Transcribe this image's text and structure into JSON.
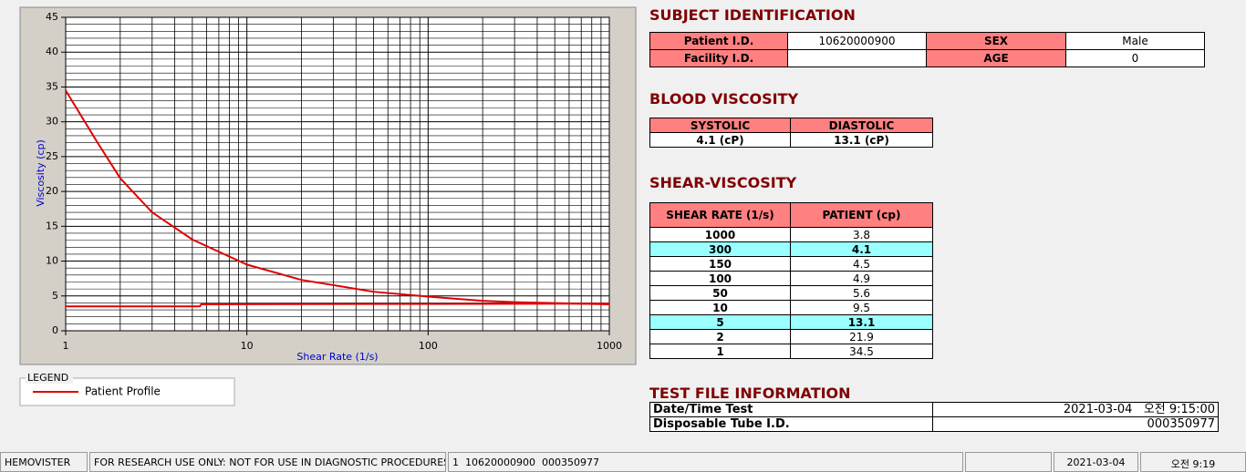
{
  "chart": {
    "type": "line",
    "x_label": "Shear Rate (1/s)",
    "y_label": "Viscosity (cp)",
    "log_x": true,
    "xlim": [
      1,
      1000
    ],
    "xticks": [
      1,
      10,
      100,
      1000
    ],
    "xminorticks": [
      2,
      3,
      4,
      5,
      6,
      7,
      8,
      9,
      20,
      30,
      40,
      50,
      60,
      70,
      80,
      90,
      200,
      300,
      400,
      500,
      600,
      700,
      800,
      900
    ],
    "ylim": [
      0,
      45
    ],
    "yticks": [
      0,
      5,
      10,
      15,
      20,
      25,
      30,
      35,
      40,
      45
    ],
    "yminorticks": [
      1,
      2,
      3,
      4,
      6,
      7,
      8,
      9,
      11,
      12,
      13,
      14,
      16,
      17,
      18,
      19,
      21,
      22,
      23,
      24,
      26,
      27,
      28,
      29,
      31,
      32,
      33,
      34,
      36,
      37,
      38,
      39,
      41,
      42,
      43,
      44
    ],
    "grid": true,
    "series": [
      {
        "name": "Patient Profile",
        "color": "#e00000",
        "x": [
          1,
          1.5,
          2,
          3,
          5,
          10,
          20,
          50,
          100,
          200,
          300,
          1000
        ],
        "values": [
          34.5,
          27,
          21.9,
          17,
          13.1,
          9.5,
          7.3,
          5.6,
          4.9,
          4.3,
          4.1,
          3.8
        ]
      },
      {
        "color": "#e00000",
        "x": [
          1,
          5.5,
          5.6,
          1000
        ],
        "values": [
          3.5,
          3.5,
          3.8,
          3.9
        ]
      }
    ]
  },
  "legend": {
    "title": "LEGEND"
  },
  "subject": {
    "title": "SUBJECT IDENTIFICATION",
    "fields": [
      {
        "label": "Patient I.D.",
        "value": "10620000900"
      },
      {
        "label": "SEX",
        "value": "Male"
      },
      {
        "label": "Facility I.D."
      },
      {
        "label": "AGE",
        "value": "0"
      }
    ]
  },
  "blood": {
    "title": "BLOOD VISCOSITY",
    "headers": [
      "SYSTOLIC",
      "DIASTOLIC"
    ],
    "values": [
      "4.1 (cP)",
      "13.1 (cP)"
    ]
  },
  "shear": {
    "title": "SHEAR-VISCOSITY",
    "headers": [
      "SHEAR RATE (1/s)",
      "PATIENT (cp)"
    ],
    "rows": [
      {
        "rate": "1000",
        "patient": "3.8"
      },
      {
        "rate": "300",
        "patient": "4.1",
        "highlight": true
      },
      {
        "rate": "150",
        "patient": "4.5"
      },
      {
        "rate": "100",
        "patient": "4.9"
      },
      {
        "rate": "50",
        "patient": "5.6"
      },
      {
        "rate": "10",
        "patient": "9.5"
      },
      {
        "rate": "5",
        "patient": "13.1",
        "highlight": true
      },
      {
        "rate": "2",
        "patient": "21.9"
      },
      {
        "rate": "1",
        "patient": "34.5"
      }
    ]
  },
  "test_file": {
    "title": "TEST FILE INFORMATION",
    "rows": [
      {
        "label": "Date/Time Test",
        "value": "2021-03-04   오전 9:15:00"
      },
      {
        "label": "Disposable Tube I.D.",
        "value": "000350977"
      }
    ]
  },
  "status_bar": [
    "HEMOVISTER",
    "FOR RESEARCH USE ONLY: NOT FOR USE IN DIAGNOSTIC PROCEDURES",
    "1  10620000900  000350977",
    null,
    "2021-03-04",
    "오전 9:19"
  ]
}
